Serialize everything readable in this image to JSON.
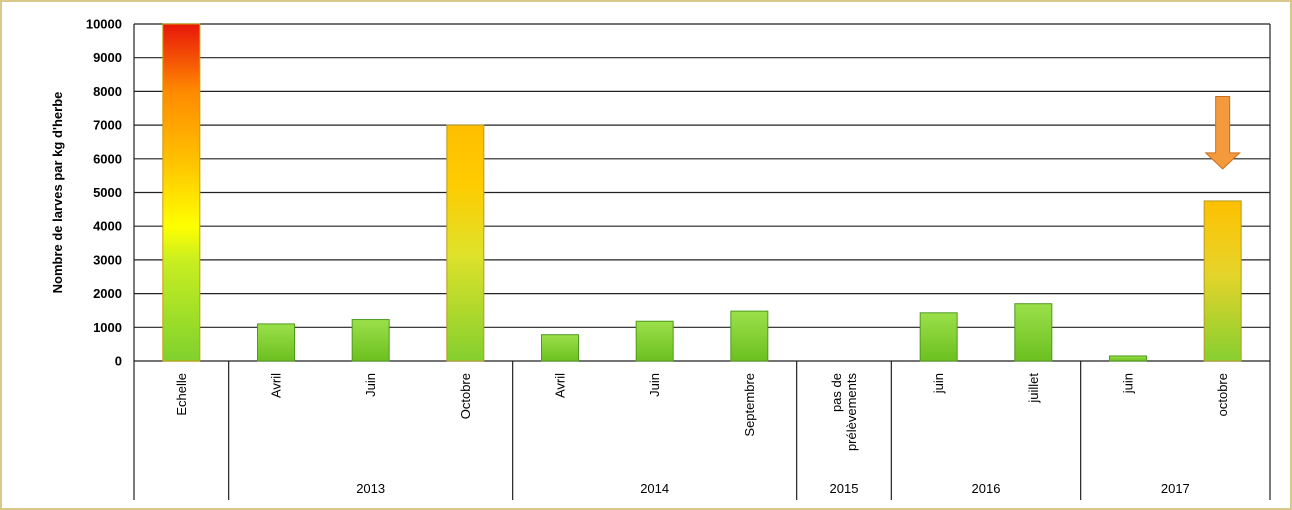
{
  "chart_data": {
    "type": "bar",
    "ylabel": "Nombre de larves par kg d'herbe",
    "ylim": [
      0,
      10000
    ],
    "yticks": [
      0,
      1000,
      2000,
      3000,
      4000,
      5000,
      6000,
      7000,
      8000,
      9000,
      10000
    ],
    "grid": true,
    "categories": [
      {
        "label": "Echelle",
        "group": "",
        "value": 10000,
        "style": "scale"
      },
      {
        "label": "Avril",
        "group": "2013",
        "value": 1100,
        "style": "green"
      },
      {
        "label": "Juin",
        "group": "2013",
        "value": 1230,
        "style": "green"
      },
      {
        "label": "Octobre",
        "group": "2013",
        "value": 7000,
        "style": "gradient"
      },
      {
        "label": "Avril",
        "group": "2014",
        "value": 780,
        "style": "green"
      },
      {
        "label": "Juin",
        "group": "2014",
        "value": 1180,
        "style": "green"
      },
      {
        "label": "Septembre",
        "group": "2014",
        "value": 1480,
        "style": "green"
      },
      {
        "label": "pas de|prélèvements",
        "group": "2015",
        "value": null,
        "style": "none"
      },
      {
        "label": "juin",
        "group": "2016",
        "value": 1430,
        "style": "green"
      },
      {
        "label": "juillet",
        "group": "2016",
        "value": 1700,
        "style": "green"
      },
      {
        "label": "juin",
        "group": "2017",
        "value": 150,
        "style": "green"
      },
      {
        "label": "octobre",
        "group": "2017",
        "value": 4750,
        "style": "gradient"
      }
    ],
    "groups": [
      {
        "label": "",
        "span": 1
      },
      {
        "label": "2013",
        "span": 3
      },
      {
        "label": "2014",
        "span": 3
      },
      {
        "label": "2015",
        "span": 1
      },
      {
        "label": "2016",
        "span": 2
      },
      {
        "label": "2017",
        "span": 2
      }
    ],
    "annotation": {
      "type": "arrow-down",
      "category_index": 11,
      "from_value": 7850,
      "to_value": 5700,
      "color": "#f59a3c"
    },
    "colors": {
      "low": "#7ed321",
      "mid": "#ffff00",
      "high_mid": "#ffc000",
      "high": "#e81b0a",
      "grid": "#000000",
      "arrow": "#f59a3c"
    }
  }
}
